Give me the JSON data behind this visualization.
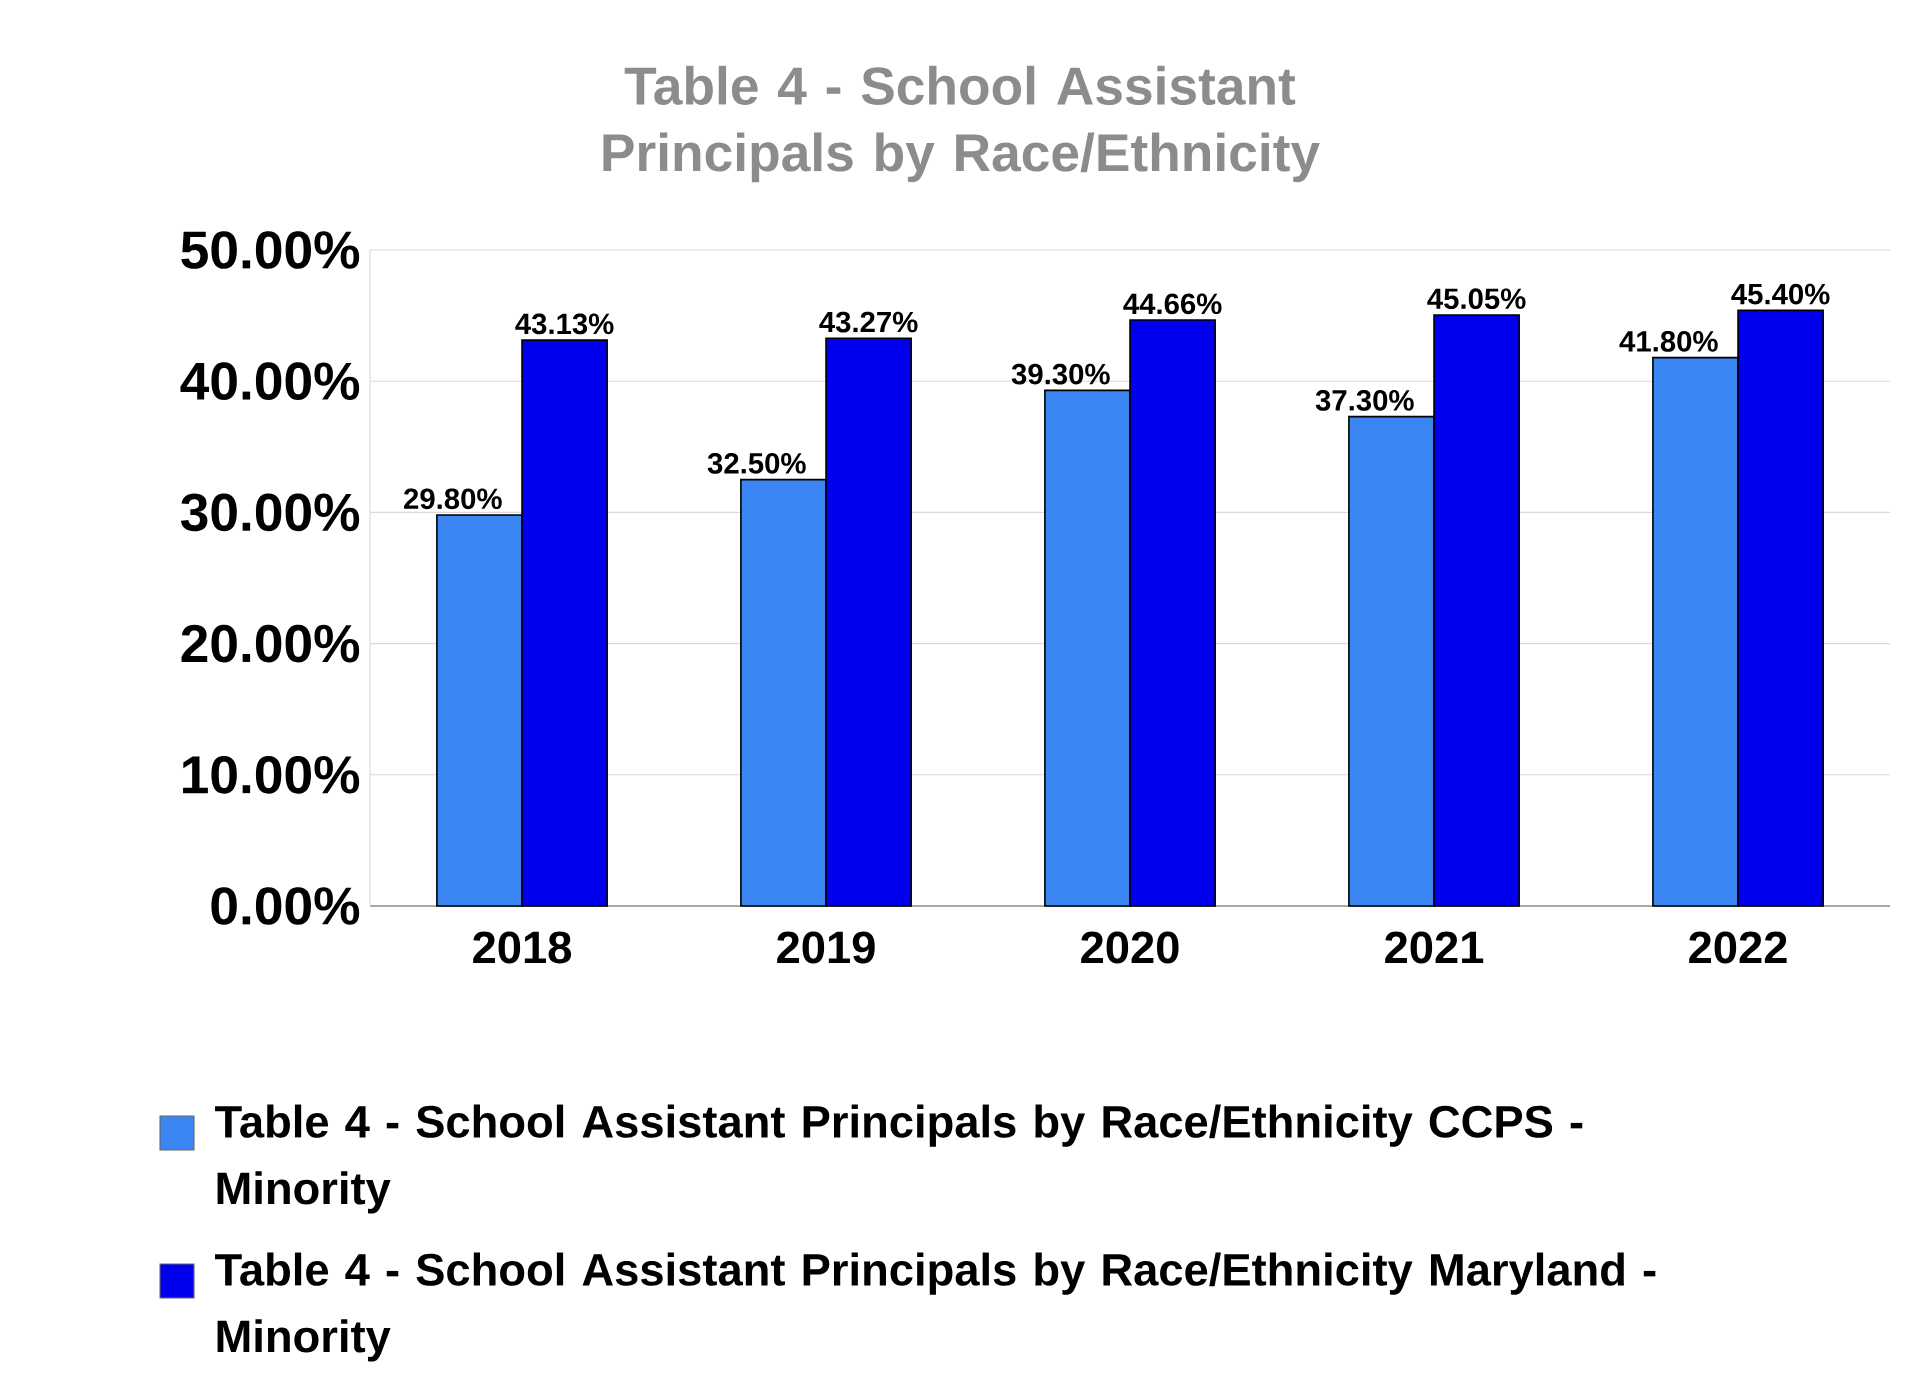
{
  "chart_data": {
    "type": "bar",
    "title": "Table 4 - School Assistant Principals by Race/Ethnicity",
    "categories": [
      "2018",
      "2019",
      "2020",
      "2021",
      "2022"
    ],
    "series": [
      {
        "name": "Table 4 - School Assistant Principals by Race/Ethnicity CCPS - Minority",
        "color": "#3b86f2",
        "values": [
          29.8,
          32.5,
          39.3,
          37.3,
          41.8
        ],
        "value_labels": [
          "29.80%",
          "32.50%",
          "39.30%",
          "37.30%",
          "41.80%"
        ]
      },
      {
        "name": "Table 4 - School Assistant Principals by Race/Ethnicity Maryland - Minority",
        "color": "#0000ee",
        "values": [
          43.13,
          43.27,
          44.66,
          45.05,
          45.4
        ],
        "value_labels": [
          "43.13%",
          "43.27%",
          "44.66%",
          "45.05%",
          "45.40%"
        ]
      }
    ],
    "ylim": [
      0,
      50
    ],
    "yticks": [
      {
        "value": 0,
        "label": "0.00%"
      },
      {
        "value": 10,
        "label": "10.00%"
      },
      {
        "value": 20,
        "label": "20.00%"
      },
      {
        "value": 30,
        "label": "30.00%"
      },
      {
        "value": 40,
        "label": "40.00%"
      },
      {
        "value": 50,
        "label": "50.00%"
      }
    ],
    "grid": "y",
    "legend": "bottom"
  }
}
